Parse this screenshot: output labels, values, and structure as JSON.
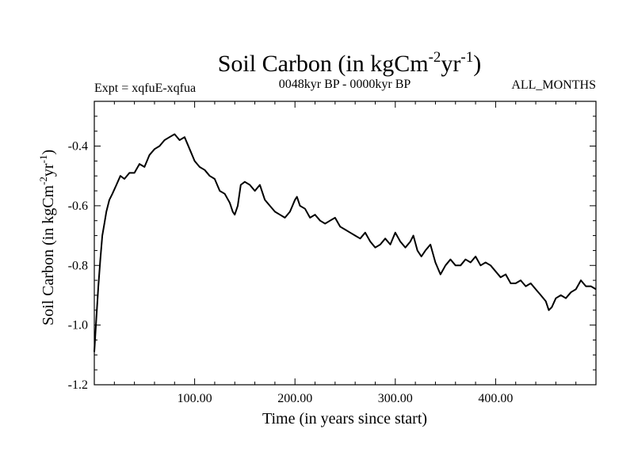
{
  "chart_data": {
    "type": "line",
    "title": "Soil Carbon (in kgCm",
    "title_sup1": "-2",
    "title_mid": "yr",
    "title_sup2": "-1",
    "title_end": ")",
    "subtitle_left": "Expt = xqfuE-xqfua",
    "subtitle_center": "0048kyr BP - 0000kyr BP",
    "subtitle_right": "ALL_MONTHS",
    "xlabel": "Time (in years since start)",
    "ylabel": "Soil Carbon (in kgCm",
    "ylabel_sup1": "-2",
    "ylabel_mid": "yr",
    "ylabel_sup2": "-1",
    "ylabel_end": ")",
    "xlim": [
      0,
      500
    ],
    "ylim": [
      -1.2,
      -0.25
    ],
    "x_ticks": [
      100,
      200,
      300,
      400
    ],
    "x_tick_labels": [
      "100.00",
      "200.00",
      "300.00",
      "400.00"
    ],
    "y_ticks": [
      -1.2,
      -1.0,
      -0.8,
      -0.6,
      -0.4
    ],
    "y_tick_labels": [
      "-1.2",
      "-1.0",
      "-0.8",
      "-0.6",
      "-0.4"
    ],
    "series": [
      {
        "name": "Soil Carbon",
        "x": [
          0,
          2,
          4,
          6,
          8,
          10,
          12,
          15,
          18,
          22,
          26,
          30,
          35,
          40,
          45,
          50,
          55,
          60,
          65,
          70,
          75,
          80,
          85,
          90,
          95,
          100,
          105,
          110,
          115,
          120,
          125,
          130,
          135,
          138,
          140,
          143,
          146,
          150,
          155,
          160,
          165,
          170,
          175,
          180,
          185,
          190,
          195,
          200,
          202,
          205,
          210,
          215,
          220,
          225,
          230,
          235,
          240,
          245,
          250,
          255,
          260,
          265,
          270,
          275,
          280,
          285,
          290,
          295,
          300,
          305,
          310,
          315,
          318,
          322,
          326,
          330,
          335,
          340,
          345,
          350,
          355,
          360,
          365,
          370,
          375,
          380,
          385,
          390,
          395,
          400,
          405,
          410,
          415,
          420,
          425,
          430,
          435,
          440,
          445,
          450,
          453,
          456,
          460,
          465,
          470,
          475,
          480,
          485,
          490,
          495,
          500
        ],
        "values": [
          -1.09,
          -0.98,
          -0.87,
          -0.78,
          -0.7,
          -0.66,
          -0.62,
          -0.58,
          -0.56,
          -0.53,
          -0.5,
          -0.51,
          -0.49,
          -0.49,
          -0.46,
          -0.47,
          -0.43,
          -0.41,
          -0.4,
          -0.38,
          -0.37,
          -0.36,
          -0.38,
          -0.37,
          -0.41,
          -0.45,
          -0.47,
          -0.48,
          -0.5,
          -0.51,
          -0.55,
          -0.56,
          -0.59,
          -0.62,
          -0.63,
          -0.6,
          -0.53,
          -0.52,
          -0.53,
          -0.55,
          -0.53,
          -0.58,
          -0.6,
          -0.62,
          -0.63,
          -0.64,
          -0.62,
          -0.58,
          -0.57,
          -0.6,
          -0.61,
          -0.64,
          -0.63,
          -0.65,
          -0.66,
          -0.65,
          -0.64,
          -0.67,
          -0.68,
          -0.69,
          -0.7,
          -0.71,
          -0.69,
          -0.72,
          -0.74,
          -0.73,
          -0.71,
          -0.73,
          -0.69,
          -0.72,
          -0.74,
          -0.72,
          -0.7,
          -0.75,
          -0.77,
          -0.75,
          -0.73,
          -0.79,
          -0.83,
          -0.8,
          -0.78,
          -0.8,
          -0.8,
          -0.78,
          -0.79,
          -0.77,
          -0.8,
          -0.79,
          -0.8,
          -0.82,
          -0.84,
          -0.83,
          -0.86,
          -0.86,
          -0.85,
          -0.87,
          -0.86,
          -0.88,
          -0.9,
          -0.92,
          -0.95,
          -0.94,
          -0.91,
          -0.9,
          -0.91,
          -0.89,
          -0.88,
          -0.85,
          -0.87,
          -0.87,
          -0.88
        ]
      }
    ]
  }
}
